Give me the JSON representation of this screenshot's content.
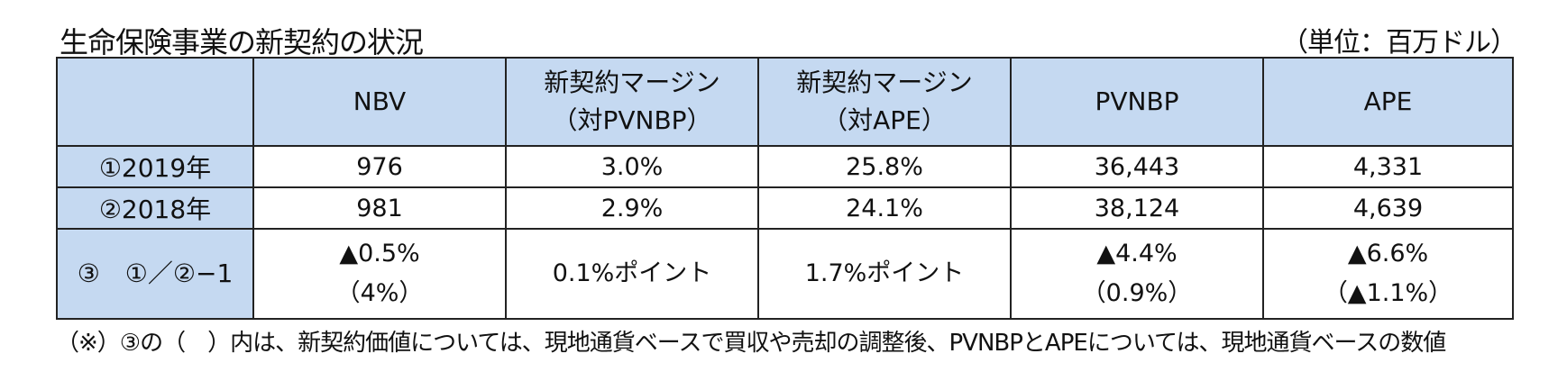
{
  "title": "生命保険事業の新契約の状況",
  "unit": "（単位：百万ドル）",
  "table": {
    "headers": [
      {
        "line1": "",
        "line2": ""
      },
      {
        "line1": "NBV",
        "line2": ""
      },
      {
        "line1": "新契約マージン",
        "line2": "（対PVNBP）"
      },
      {
        "line1": "新契約マージン",
        "line2": "（対APE）"
      },
      {
        "line1": "PVNBP",
        "line2": ""
      },
      {
        "line1": "APE",
        "line2": ""
      }
    ],
    "rows": [
      {
        "label": "①2019年",
        "cells": [
          {
            "line1": "976",
            "line2": ""
          },
          {
            "line1": "3.0%",
            "line2": ""
          },
          {
            "line1": "25.8%",
            "line2": ""
          },
          {
            "line1": "36,443",
            "line2": ""
          },
          {
            "line1": "4,331",
            "line2": ""
          }
        ]
      },
      {
        "label": "②2018年",
        "cells": [
          {
            "line1": "981",
            "line2": ""
          },
          {
            "line1": "2.9%",
            "line2": ""
          },
          {
            "line1": "24.1%",
            "line2": ""
          },
          {
            "line1": "38,124",
            "line2": ""
          },
          {
            "line1": "4,639",
            "line2": ""
          }
        ]
      },
      {
        "label": "③　①／②−1",
        "cells": [
          {
            "line1": "▲0.5%",
            "line2": "（4%）"
          },
          {
            "line1": "0.1%ポイント",
            "line2": ""
          },
          {
            "line1": "1.7%ポイント",
            "line2": ""
          },
          {
            "line1": "▲4.4%",
            "line2": "（0.9%）"
          },
          {
            "line1": "▲6.6%",
            "line2": "（▲1.1%）"
          }
        ]
      }
    ]
  },
  "note": "（※）③の（　）内は、新契約価値については、現地通貨ベースで買収や売却の調整後、PVNBPとAPEについては、現地通貨ベースの数値",
  "colors": {
    "header_bg": "#c5d9f1",
    "border": "#222222"
  }
}
